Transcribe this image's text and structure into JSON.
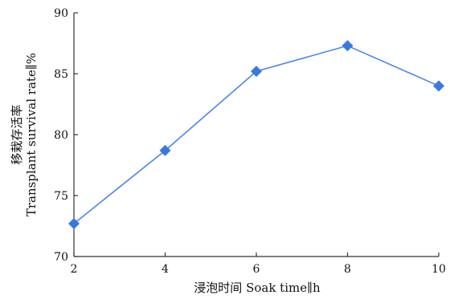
{
  "chart_data": {
    "type": "line",
    "x": [
      2,
      4,
      6,
      8,
      10
    ],
    "series": [
      {
        "values": [
          72.7,
          78.7,
          85.2,
          87.3,
          84.0
        ]
      }
    ],
    "xlim": [
      2,
      10
    ],
    "ylim": [
      70,
      90
    ],
    "xticks": [
      2,
      4,
      6,
      8,
      10
    ],
    "yticks": [
      70,
      75,
      80,
      85,
      90
    ],
    "xlabel": "浸泡时间 Soak time∥h",
    "ylabel_zh": "移栽存活率",
    "ylabel_en": "Transplant survival rate∥%",
    "grid": false,
    "marker": "diamond",
    "colors": {
      "line": "#4a86e8",
      "marker": "#3a78e0",
      "axis": "#333333"
    }
  }
}
